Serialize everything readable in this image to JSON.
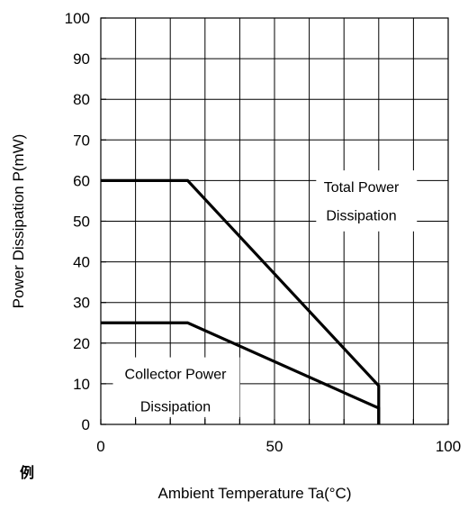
{
  "chart_data": {
    "type": "line",
    "title": "",
    "xlabel": "Ambient Temperature Ta(°C)",
    "ylabel": "Power Dissipation P(mW)",
    "xlim": [
      0,
      100
    ],
    "ylim": [
      0,
      100
    ],
    "grid": true,
    "x_ticks": [
      0,
      10,
      20,
      30,
      40,
      50,
      60,
      70,
      80,
      90,
      100
    ],
    "x_tick_labels": [
      "0",
      "50",
      "100"
    ],
    "x_tick_label_values": [
      0,
      50,
      100
    ],
    "y_ticks": [
      0,
      10,
      20,
      30,
      40,
      50,
      60,
      70,
      80,
      90,
      100
    ],
    "y_tick_labels": [
      "0",
      "10",
      "20",
      "30",
      "40",
      "50",
      "60",
      "70",
      "80",
      "90",
      "100"
    ],
    "series": [
      {
        "x": [
          0,
          25,
          80,
          80
        ],
        "y": [
          60,
          60,
          9.5,
          0
        ],
        "color": "#000000"
      },
      {
        "x": [
          0,
          25,
          80,
          80
        ],
        "y": [
          25,
          25,
          4,
          0
        ],
        "color": "#000000"
      }
    ],
    "annotations": [
      {
        "lines": [
          "Total Power",
          "Dissipation"
        ],
        "x": 75,
        "y": [
          58.5,
          51.5
        ]
      },
      {
        "lines": [
          "Collector Power",
          "Dissipation"
        ],
        "x": 21.5,
        "y": [
          12.5,
          4.5
        ]
      }
    ]
  },
  "corner_fragment": "例"
}
